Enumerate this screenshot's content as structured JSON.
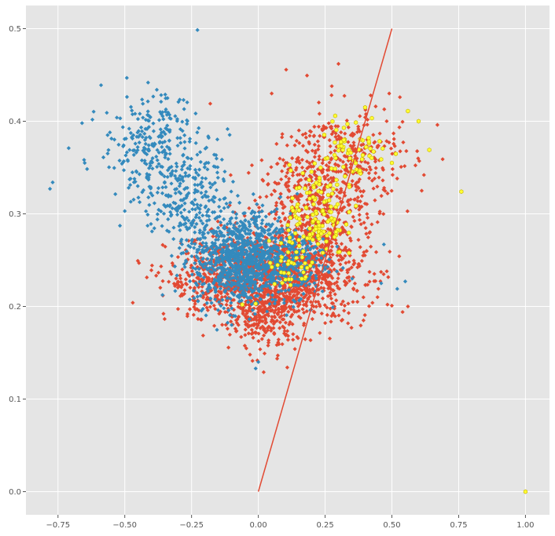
{
  "chart_data": {
    "type": "scatter",
    "title": "",
    "xlabel": "",
    "ylabel": "",
    "xlim": [
      -0.87,
      1.09
    ],
    "ylim": [
      -0.025,
      0.525
    ],
    "grid": true,
    "x_ticks": [
      -0.75,
      -0.5,
      -0.25,
      0.0,
      0.25,
      0.5,
      0.75,
      1.0
    ],
    "x_tick_labels": [
      "−0.75",
      "−0.50",
      "−0.25",
      "0.00",
      "0.25",
      "0.50",
      "0.75",
      "1.00"
    ],
    "y_ticks": [
      0.0,
      0.1,
      0.2,
      0.3,
      0.4,
      0.5
    ],
    "y_tick_labels": [
      "0.0",
      "0.1",
      "0.2",
      "0.3",
      "0.4",
      "0.5"
    ],
    "colors": {
      "background": "#e5e5e5",
      "grid": "#ffffff",
      "red": "#e24a33",
      "blue": "#348abd",
      "yellow": "#ffff33",
      "yellow_edge": "#c8b400",
      "line": "#e24a33"
    },
    "series": [
      {
        "color": "#348abd",
        "marker": "diamond",
        "clusters": [
          {
            "cx": -0.4,
            "cy": 0.37,
            "sx": 0.09,
            "sy": 0.03,
            "n": 260
          },
          {
            "cx": -0.25,
            "cy": 0.32,
            "sx": 0.07,
            "sy": 0.03,
            "n": 220
          },
          {
            "cx": -0.06,
            "cy": 0.25,
            "sx": 0.09,
            "sy": 0.025,
            "n": 950
          },
          {
            "cx": 0.12,
            "cy": 0.25,
            "sx": 0.07,
            "sy": 0.02,
            "n": 220
          }
        ],
        "points": [
          {
            "x": -0.78,
            "y": 0.327
          },
          {
            "x": -0.77,
            "y": 0.334
          },
          {
            "x": -0.71,
            "y": 0.371
          },
          {
            "x": -0.66,
            "y": 0.398
          },
          {
            "x": -0.65,
            "y": 0.355
          },
          {
            "x": -0.58,
            "y": 0.361
          },
          {
            "x": -0.5,
            "y": 0.303
          },
          {
            "x": -0.38,
            "y": 0.434
          },
          {
            "x": -0.34,
            "y": 0.425
          },
          {
            "x": -0.28,
            "y": 0.423
          },
          {
            "x": -0.1,
            "y": 0.18
          },
          {
            "x": -0.01,
            "y": 0.133
          },
          {
            "x": 0.0,
            "y": 0.14
          },
          {
            "x": 0.52,
            "y": 0.219
          },
          {
            "x": 0.55,
            "y": 0.227
          },
          {
            "x": 0.46,
            "y": 0.225
          },
          {
            "x": 0.47,
            "y": 0.267
          }
        ]
      },
      {
        "color": "#e24a33",
        "marker": "diamond",
        "clusters": [
          {
            "cx": 0.12,
            "cy": 0.23,
            "sx": 0.14,
            "sy": 0.025,
            "n": 900
          },
          {
            "cx": -0.12,
            "cy": 0.23,
            "sx": 0.11,
            "sy": 0.022,
            "n": 500
          },
          {
            "cx": 0.2,
            "cy": 0.3,
            "sx": 0.1,
            "sy": 0.035,
            "n": 500
          },
          {
            "cx": 0.34,
            "cy": 0.36,
            "sx": 0.1,
            "sy": 0.03,
            "n": 280
          },
          {
            "cx": 0.02,
            "cy": 0.19,
            "sx": 0.06,
            "sy": 0.02,
            "n": 200
          }
        ],
        "points": [
          {
            "x": 0.3,
            "y": 0.462
          },
          {
            "x": 0.05,
            "y": 0.43
          },
          {
            "x": -0.18,
            "y": 0.419
          },
          {
            "x": 0.56,
            "y": 0.2
          },
          {
            "x": 0.54,
            "y": 0.194
          },
          {
            "x": 0.69,
            "y": 0.359
          },
          {
            "x": 0.62,
            "y": 0.342
          },
          {
            "x": 0.02,
            "y": 0.129
          },
          {
            "x": -0.47,
            "y": 0.204
          },
          {
            "x": 0.53,
            "y": 0.426
          },
          {
            "x": 0.49,
            "y": 0.43
          }
        ]
      },
      {
        "color": "#ffff33",
        "marker": "hexagon",
        "clusters": [
          {
            "cx": 0.22,
            "cy": 0.3,
            "sx": 0.05,
            "sy": 0.025,
            "n": 120
          },
          {
            "cx": 0.36,
            "cy": 0.37,
            "sx": 0.06,
            "sy": 0.02,
            "n": 60
          },
          {
            "cx": 0.14,
            "cy": 0.25,
            "sx": 0.05,
            "sy": 0.015,
            "n": 40
          }
        ],
        "points": [
          {
            "x": 1.0,
            "y": 0.0
          },
          {
            "x": 0.76,
            "y": 0.324
          },
          {
            "x": 0.64,
            "y": 0.369
          },
          {
            "x": 0.56,
            "y": 0.411
          },
          {
            "x": 0.6,
            "y": 0.4
          },
          {
            "x": 0.5,
            "y": 0.355
          },
          {
            "x": -0.01,
            "y": 0.203
          },
          {
            "x": -0.06,
            "y": 0.202
          }
        ]
      }
    ],
    "lines": [
      {
        "color": "#e24a33",
        "x": [
          0.0,
          0.5
        ],
        "y": [
          0.0,
          0.5
        ]
      }
    ]
  }
}
